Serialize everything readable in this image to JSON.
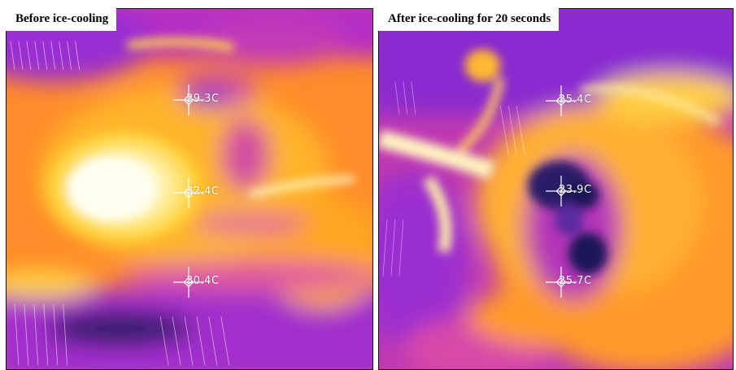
{
  "panels": [
    {
      "caption": "Before ice-cooling",
      "markers": [
        {
          "temperature": "29.3C"
        },
        {
          "temperature": "32.4C"
        },
        {
          "temperature": "30.4C"
        }
      ]
    },
    {
      "caption": "After ice-cooling for 20 seconds",
      "markers": [
        {
          "temperature": "25.4C"
        },
        {
          "temperature": "23.9C"
        },
        {
          "temperature": "25.7C"
        }
      ]
    }
  ],
  "palette": {
    "hot_white": "#fffbe0",
    "yellow": "#ffd23a",
    "orange": "#ff9a1e",
    "magenta": "#e03aa8",
    "purple": "#8a2bd0",
    "cold_navy": "#1c1858"
  },
  "colormap": "ironbow thermal"
}
